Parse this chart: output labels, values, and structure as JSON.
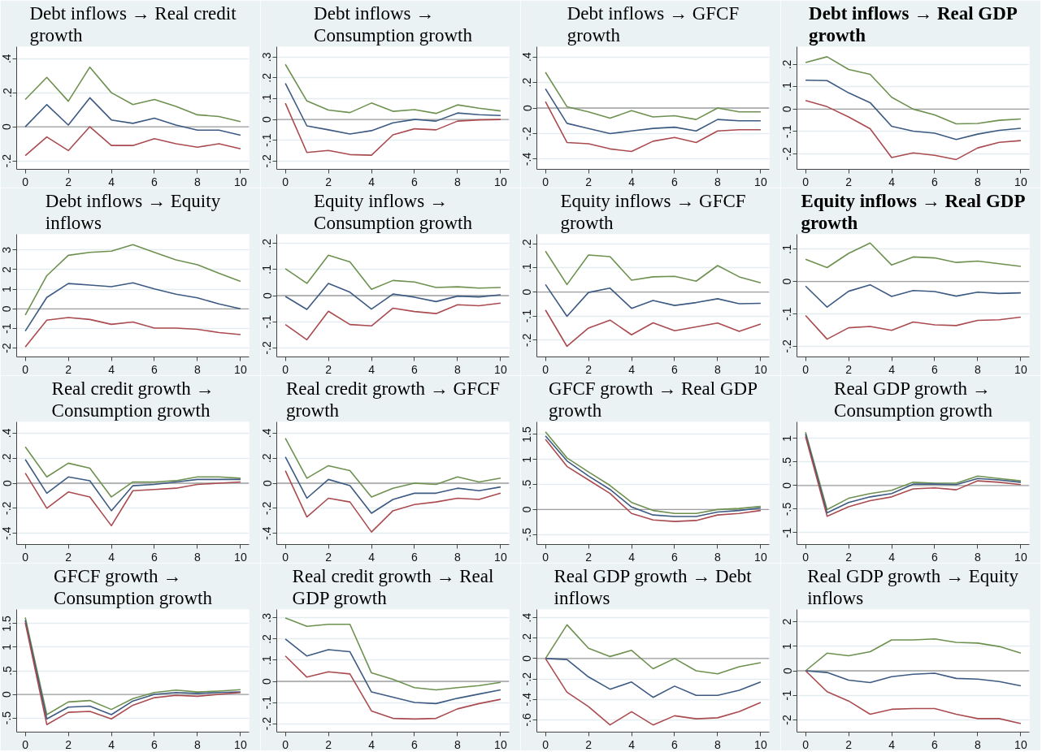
{
  "chart_data": [
    {
      "type": "line",
      "title": "Debt inflows → Real credit growth",
      "x": [
        0,
        1,
        2,
        3,
        4,
        5,
        6,
        7,
        8,
        9,
        10
      ],
      "xlim": [
        -0.4,
        10.4
      ],
      "xticks": [
        0,
        2,
        4,
        6,
        8,
        10
      ],
      "ylim": [
        -0.25,
        0.47
      ],
      "yticks": [
        {
          "value": -0.2,
          "label": "-.2"
        },
        0,
        {
          "value": 0.2,
          "label": ".2"
        },
        {
          "value": 0.4,
          "label": ".4"
        }
      ],
      "grid": "y",
      "ref_lines": [
        {
          "axis": "y",
          "value": 0,
          "color": "#a0a0a0"
        }
      ],
      "series": [
        {
          "color": "#6e9150",
          "values": [
            0.16,
            0.29,
            0.15,
            0.35,
            0.2,
            0.13,
            0.16,
            0.12,
            0.07,
            0.06,
            0.03
          ]
        },
        {
          "color": "#3c5a82",
          "values": [
            0,
            0.13,
            0.01,
            0.17,
            0.04,
            0.02,
            0.05,
            0.01,
            -0.02,
            -0.02,
            -0.05
          ]
        },
        {
          "color": "#aa4b50",
          "values": [
            -0.17,
            -0.06,
            -0.14,
            0,
            -0.11,
            -0.11,
            -0.07,
            -0.1,
            -0.12,
            -0.1,
            -0.13
          ]
        }
      ]
    },
    {
      "type": "line",
      "title": "Debt inflows → Consumption growth",
      "x": [
        0,
        1,
        2,
        3,
        4,
        5,
        6,
        7,
        8,
        9,
        10
      ],
      "xlim": [
        -0.4,
        10.4
      ],
      "xticks": [
        0,
        2,
        4,
        6,
        8,
        10
      ],
      "ylim": [
        -0.24,
        0.35
      ],
      "yticks": [
        {
          "value": -0.2,
          "label": "-.2"
        },
        {
          "value": -0.1,
          "label": "-.1"
        },
        0,
        {
          "value": 0.1,
          "label": ".1"
        },
        {
          "value": 0.2,
          "label": ".2"
        },
        {
          "value": 0.3,
          "label": ".3"
        }
      ],
      "grid": "y",
      "ref_lines": [
        {
          "axis": "y",
          "value": 0,
          "color": "#a0a0a0"
        }
      ],
      "series": [
        {
          "color": "#6e9150",
          "values": [
            0.265,
            0.089,
            0.045,
            0.033,
            0.079,
            0.039,
            0.047,
            0.029,
            0.07,
            0.054,
            0.041
          ]
        },
        {
          "color": "#3c5a82",
          "values": [
            0.174,
            -0.031,
            -0.05,
            -0.07,
            -0.054,
            -0.016,
            0,
            -0.008,
            0.031,
            0.023,
            0.019
          ]
        },
        {
          "color": "#aa4b50",
          "values": [
            0.078,
            -0.159,
            -0.149,
            -0.169,
            -0.172,
            -0.074,
            -0.045,
            -0.05,
            -0.008,
            -0.002,
            0
          ]
        }
      ]
    },
    {
      "type": "line",
      "title": "Debt inflows → GFCF growth",
      "x": [
        0,
        1,
        2,
        3,
        4,
        5,
        6,
        7,
        8,
        9,
        10
      ],
      "xlim": [
        -0.4,
        10.4
      ],
      "xticks": [
        0,
        2,
        4,
        6,
        8,
        10
      ],
      "ylim": [
        -0.48,
        0.48
      ],
      "yticks": [
        {
          "value": -0.4,
          "label": "-.4"
        },
        {
          "value": -0.2,
          "label": "-.2"
        },
        0,
        {
          "value": 0.2,
          "label": ".2"
        },
        {
          "value": 0.4,
          "label": ".4"
        }
      ],
      "grid": "y",
      "ref_lines": [
        {
          "axis": "y",
          "value": 0,
          "color": "#a0a0a0"
        }
      ],
      "series": [
        {
          "color": "#6e9150",
          "values": [
            0.28,
            0.01,
            -0.03,
            -0.08,
            -0.02,
            -0.07,
            -0.06,
            -0.09,
            0,
            -0.03,
            -0.03
          ]
        },
        {
          "color": "#3c5a82",
          "values": [
            0.15,
            -0.12,
            -0.16,
            -0.2,
            -0.18,
            -0.16,
            -0.15,
            -0.18,
            -0.09,
            -0.1,
            -0.1
          ]
        },
        {
          "color": "#aa4b50",
          "values": [
            0.05,
            -0.27,
            -0.28,
            -0.32,
            -0.34,
            -0.26,
            -0.23,
            -0.27,
            -0.18,
            -0.17,
            -0.17
          ]
        }
      ]
    },
    {
      "type": "line",
      "title": "Debt inflows → Real GDP growth",
      "x": [
        0,
        1,
        2,
        3,
        4,
        5,
        6,
        7,
        8,
        9,
        10
      ],
      "xlim": [
        -0.4,
        10.4
      ],
      "xticks": [
        0,
        2,
        4,
        6,
        8,
        10
      ],
      "ylim": [
        -0.27,
        0.28
      ],
      "yticks": [
        {
          "value": -0.2,
          "label": "-.2"
        },
        {
          "value": -0.1,
          "label": "-.1"
        },
        0,
        {
          "value": 0.1,
          "label": ".1"
        },
        {
          "value": 0.2,
          "label": ".2"
        }
      ],
      "grid": "y",
      "ref_lines": [
        {
          "axis": "y",
          "value": 0,
          "color": "#a0a0a0"
        }
      ],
      "series": [
        {
          "color": "#6e9150",
          "values": [
            0.209,
            0.235,
            0.178,
            0.156,
            0.053,
            0,
            -0.026,
            -0.066,
            -0.064,
            -0.05,
            -0.044
          ]
        },
        {
          "color": "#3c5a82",
          "values": [
            0.13,
            0.128,
            0.073,
            0.029,
            -0.077,
            -0.099,
            -0.108,
            -0.136,
            -0.112,
            -0.095,
            -0.086
          ]
        },
        {
          "color": "#aa4b50",
          "values": [
            0.039,
            0.011,
            -0.035,
            -0.088,
            -0.217,
            -0.196,
            -0.207,
            -0.226,
            -0.174,
            -0.149,
            -0.141
          ]
        }
      ]
    },
    {
      "type": "line",
      "title": "Debt inflows → Equity inflows",
      "x": [
        0,
        1,
        2,
        3,
        4,
        5,
        6,
        7,
        8,
        9,
        10
      ],
      "xlim": [
        -0.4,
        10.4
      ],
      "xticks": [
        0,
        2,
        4,
        6,
        8,
        10
      ],
      "ylim": [
        -2.45,
        3.8
      ],
      "yticks": [
        -2,
        -1,
        0,
        1,
        2,
        3
      ],
      "grid": "y",
      "ref_lines": [
        {
          "axis": "y",
          "value": 0,
          "color": "#a0a0a0"
        }
      ],
      "series": [
        {
          "color": "#6e9150",
          "values": [
            -0.31,
            1.69,
            2.73,
            2.88,
            2.94,
            3.27,
            2.88,
            2.5,
            2.25,
            1.81,
            1.4
          ]
        },
        {
          "color": "#3c5a82",
          "values": [
            -1.13,
            0.58,
            1.29,
            1.21,
            1.13,
            1.33,
            1.02,
            0.75,
            0.56,
            0.25,
            0
          ]
        },
        {
          "color": "#aa4b50",
          "values": [
            -1.94,
            -0.58,
            -0.44,
            -0.54,
            -0.79,
            -0.67,
            -0.98,
            -0.98,
            -1.04,
            -1.21,
            -1.31
          ]
        }
      ]
    },
    {
      "type": "line",
      "title": "Equity inflows → Consumption growth",
      "x": [
        0,
        1,
        2,
        3,
        4,
        5,
        6,
        7,
        8,
        9,
        10
      ],
      "xlim": [
        -0.4,
        10.4
      ],
      "xticks": [
        0,
        2,
        4,
        6,
        8,
        10
      ],
      "ylim": [
        -0.235,
        0.235
      ],
      "yticks": [
        {
          "value": -0.2,
          "label": "-.2"
        },
        {
          "value": -0.1,
          "label": "-.1"
        },
        0,
        {
          "value": 0.1,
          "label": ".1"
        },
        {
          "value": 0.2,
          "label": ".2"
        }
      ],
      "grid": "y",
      "ref_lines": [
        {
          "axis": "y",
          "value": 0,
          "color": "#a0a0a0"
        }
      ],
      "series": [
        {
          "color": "#6e9150",
          "values": [
            0.103,
            0.047,
            0.155,
            0.129,
            0.024,
            0.058,
            0.052,
            0.031,
            0.034,
            0.029,
            0.031
          ]
        },
        {
          "color": "#3c5a82",
          "values": [
            -0.003,
            -0.053,
            0.047,
            0.013,
            -0.052,
            0.006,
            -0.006,
            -0.023,
            -0.002,
            -0.005,
            0.003
          ]
        },
        {
          "color": "#aa4b50",
          "values": [
            -0.111,
            -0.169,
            -0.06,
            -0.111,
            -0.116,
            -0.048,
            -0.061,
            -0.069,
            -0.035,
            -0.039,
            -0.029
          ]
        }
      ]
    },
    {
      "type": "line",
      "title": "Equity inflows → GFCF growth",
      "x": [
        0,
        1,
        2,
        3,
        4,
        5,
        6,
        7,
        8,
        9,
        10
      ],
      "xlim": [
        -0.4,
        10.4
      ],
      "xticks": [
        0,
        2,
        4,
        6,
        8,
        10
      ],
      "ylim": [
        -0.27,
        0.24
      ],
      "yticks": [
        {
          "value": -0.2,
          "label": "-.2"
        },
        {
          "value": -0.1,
          "label": "-.1"
        },
        0,
        {
          "value": 0.1,
          "label": ".1"
        },
        {
          "value": 0.2,
          "label": ".2"
        }
      ],
      "grid": "y",
      "ref_lines": [
        {
          "axis": "y",
          "value": 0,
          "color": "#a0a0a0"
        }
      ],
      "series": [
        {
          "color": "#6e9150",
          "values": [
            0.17,
            0.031,
            0.154,
            0.147,
            0.049,
            0.063,
            0.065,
            0.045,
            0.11,
            0.063,
            0.038
          ]
        },
        {
          "color": "#3c5a82",
          "values": [
            0.031,
            -0.101,
            -0.002,
            0.016,
            -0.068,
            -0.035,
            -0.056,
            -0.044,
            -0.028,
            -0.049,
            -0.047
          ]
        },
        {
          "color": "#aa4b50",
          "values": [
            -0.075,
            -0.226,
            -0.15,
            -0.117,
            -0.178,
            -0.128,
            -0.161,
            -0.145,
            -0.129,
            -0.164,
            -0.133
          ]
        }
      ]
    },
    {
      "type": "line",
      "title": "Equity inflows → Real GDP growth",
      "x": [
        0,
        1,
        2,
        3,
        4,
        5,
        6,
        7,
        8,
        9,
        10
      ],
      "xlim": [
        -0.4,
        10.4
      ],
      "xticks": [
        0,
        2,
        4,
        6,
        8,
        10
      ],
      "ylim": [
        -0.233,
        0.146
      ],
      "yticks": [
        {
          "value": -0.2,
          "label": "-.2"
        },
        {
          "value": -0.1,
          "label": "-.1"
        },
        0,
        {
          "value": 0.1,
          "label": ".1"
        }
      ],
      "grid": "y",
      "ref_lines": [
        {
          "axis": "y",
          "value": 0,
          "color": "#a0a0a0"
        }
      ],
      "series": [
        {
          "color": "#6e9150",
          "values": [
            0.069,
            0.043,
            0.087,
            0.119,
            0.051,
            0.076,
            0.073,
            0.059,
            0.063,
            0.055,
            0.047
          ]
        },
        {
          "color": "#3c5a82",
          "values": [
            -0.014,
            -0.079,
            -0.03,
            -0.01,
            -0.046,
            -0.028,
            -0.031,
            -0.045,
            -0.033,
            -0.037,
            -0.035
          ]
        },
        {
          "color": "#aa4b50",
          "values": [
            -0.105,
            -0.178,
            -0.143,
            -0.139,
            -0.151,
            -0.125,
            -0.134,
            -0.136,
            -0.12,
            -0.118,
            -0.11
          ]
        }
      ]
    },
    {
      "type": "line",
      "title": "Real credit growth → Consumption growth",
      "x": [
        0,
        1,
        2,
        3,
        4,
        5,
        6,
        7,
        8,
        9,
        10
      ],
      "xlim": [
        -0.4,
        10.4
      ],
      "xticks": [
        0,
        2,
        4,
        6,
        8,
        10
      ],
      "ylim": [
        -0.49,
        0.49
      ],
      "yticks": [
        {
          "value": -0.4,
          "label": "-.4"
        },
        {
          "value": -0.2,
          "label": "-.2"
        },
        0,
        {
          "value": 0.2,
          "label": ".2"
        },
        {
          "value": 0.4,
          "label": ".4"
        }
      ],
      "grid": "y",
      "ref_lines": [
        {
          "axis": "y",
          "value": 0,
          "color": "#a0a0a0"
        }
      ],
      "series": [
        {
          "color": "#6e9150",
          "values": [
            0.29,
            0.05,
            0.16,
            0.12,
            -0.11,
            0.01,
            0.01,
            0.02,
            0.05,
            0.05,
            0.04
          ]
        },
        {
          "color": "#3c5a82",
          "values": [
            0.19,
            -0.08,
            0.05,
            0.02,
            -0.22,
            -0.02,
            -0.01,
            0.01,
            0.03,
            0.03,
            0.03
          ]
        },
        {
          "color": "#aa4b50",
          "values": [
            0.08,
            -0.2,
            -0.07,
            -0.11,
            -0.34,
            -0.06,
            -0.05,
            -0.04,
            -0.01,
            0,
            0.01
          ]
        }
      ]
    },
    {
      "type": "line",
      "title": "Real credit growth → GFCF growth",
      "x": [
        0,
        1,
        2,
        3,
        4,
        5,
        6,
        7,
        8,
        9,
        10
      ],
      "xlim": [
        -0.4,
        10.4
      ],
      "xticks": [
        0,
        2,
        4,
        6,
        8,
        10
      ],
      "ylim": [
        -0.49,
        0.49
      ],
      "yticks": [
        {
          "value": -0.4,
          "label": "-.4"
        },
        {
          "value": -0.2,
          "label": "-.2"
        },
        0,
        {
          "value": 0.2,
          "label": ".2"
        },
        {
          "value": 0.4,
          "label": ".4"
        }
      ],
      "grid": "y",
      "ref_lines": [
        {
          "axis": "y",
          "value": 0,
          "color": "#a0a0a0"
        }
      ],
      "series": [
        {
          "color": "#6e9150",
          "values": [
            0.36,
            0.04,
            0.14,
            0.1,
            -0.11,
            -0.04,
            0,
            -0.01,
            0.05,
            0.01,
            0.04
          ]
        },
        {
          "color": "#3c5a82",
          "values": [
            0.21,
            -0.12,
            0.03,
            -0.02,
            -0.24,
            -0.13,
            -0.08,
            -0.08,
            -0.04,
            -0.06,
            -0.03
          ]
        },
        {
          "color": "#aa4b50",
          "values": [
            0.1,
            -0.27,
            -0.12,
            -0.15,
            -0.39,
            -0.22,
            -0.17,
            -0.15,
            -0.12,
            -0.13,
            -0.08
          ]
        }
      ]
    },
    {
      "type": "line",
      "title": "GFCF growth → Real GDP growth",
      "x": [
        0,
        1,
        2,
        3,
        4,
        5,
        6,
        7,
        8,
        9,
        10
      ],
      "xlim": [
        -0.4,
        10.4
      ],
      "xticks": [
        0,
        2,
        4,
        6,
        8,
        10
      ],
      "ylim": [
        -0.7,
        1.75
      ],
      "yticks": [
        {
          "value": -0.5,
          "label": "-.5"
        },
        0,
        {
          "value": 0.5,
          "label": ".5"
        },
        1,
        1.5
      ],
      "grid": "y",
      "ref_lines": [
        {
          "axis": "y",
          "value": 0,
          "color": "#a0a0a0"
        }
      ],
      "series": [
        {
          "color": "#6e9150",
          "values": [
            1.55,
            1.03,
            0.75,
            0.48,
            0.14,
            -0.02,
            -0.08,
            -0.08,
            0,
            0.02,
            0.06
          ]
        },
        {
          "color": "#3c5a82",
          "values": [
            1.47,
            0.97,
            0.67,
            0.4,
            0.05,
            -0.11,
            -0.14,
            -0.14,
            -0.05,
            -0.02,
            0.03
          ]
        },
        {
          "color": "#aa4b50",
          "values": [
            1.4,
            0.86,
            0.59,
            0.32,
            -0.08,
            -0.21,
            -0.24,
            -0.22,
            -0.11,
            -0.08,
            -0.02
          ]
        }
      ]
    },
    {
      "type": "line",
      "title": "Real GDP growth → Consumption growth",
      "x": [
        0,
        1,
        2,
        3,
        4,
        5,
        6,
        7,
        8,
        9,
        10
      ],
      "xlim": [
        -0.4,
        10.4
      ],
      "xticks": [
        0,
        2,
        4,
        6,
        8,
        10
      ],
      "ylim": [
        -1.25,
        1.35
      ],
      "yticks": [
        -1,
        {
          "value": -0.5,
          "label": "-.5"
        },
        0,
        {
          "value": 0.5,
          "label": ".5"
        },
        1
      ],
      "grid": "y",
      "ref_lines": [
        {
          "axis": "y",
          "value": 0,
          "color": "#a0a0a0"
        }
      ],
      "series": [
        {
          "color": "#6e9150",
          "values": [
            1.13,
            -0.51,
            -0.27,
            -0.17,
            -0.1,
            0.07,
            0.05,
            0.05,
            0.2,
            0.15,
            0.1
          ]
        },
        {
          "color": "#3c5a82",
          "values": [
            1.09,
            -0.58,
            -0.36,
            -0.24,
            -0.17,
            0.03,
            0.03,
            0.02,
            0.15,
            0.12,
            0.07
          ]
        },
        {
          "color": "#aa4b50",
          "values": [
            1.04,
            -0.65,
            -0.45,
            -0.32,
            -0.24,
            -0.07,
            -0.05,
            -0.09,
            0.1,
            0.07,
            0.02
          ]
        }
      ]
    },
    {
      "type": "line",
      "title": "GFCF growth → Consumption growth",
      "x": [
        0,
        1,
        2,
        3,
        4,
        5,
        6,
        7,
        8,
        9,
        10
      ],
      "xlim": [
        -0.4,
        10.4
      ],
      "xticks": [
        0,
        2,
        4,
        6,
        8,
        10
      ],
      "ylim": [
        -0.8,
        1.8
      ],
      "yticks": [
        {
          "value": -0.5,
          "label": "-.5"
        },
        0,
        {
          "value": 0.5,
          "label": ".5"
        },
        1,
        1.5
      ],
      "grid": "y",
      "ref_lines": [
        {
          "axis": "y",
          "value": 0,
          "color": "#a0a0a0"
        }
      ],
      "series": [
        {
          "color": "#6e9150",
          "values": [
            1.63,
            -0.43,
            -0.16,
            -0.13,
            -0.32,
            -0.09,
            0.04,
            0.09,
            0.05,
            0.07,
            0.1
          ]
        },
        {
          "color": "#3c5a82",
          "values": [
            1.57,
            -0.52,
            -0.27,
            -0.25,
            -0.43,
            -0.14,
            0,
            0.04,
            0.02,
            0.04,
            0.05
          ]
        },
        {
          "color": "#aa4b50",
          "values": [
            1.52,
            -0.64,
            -0.38,
            -0.36,
            -0.52,
            -0.23,
            -0.07,
            -0.02,
            -0.04,
            0,
            0.04
          ]
        }
      ]
    },
    {
      "type": "line",
      "title": "Real credit growth → Real GDP growth",
      "x": [
        0,
        1,
        2,
        3,
        4,
        5,
        6,
        7,
        8,
        9,
        10
      ],
      "xlim": [
        -0.4,
        10.4
      ],
      "xticks": [
        0,
        2,
        4,
        6,
        8,
        10
      ],
      "ylim": [
        -0.24,
        0.34
      ],
      "yticks": [
        {
          "value": -0.2,
          "label": "-.2"
        },
        {
          "value": -0.1,
          "label": "-.1"
        },
        0,
        {
          "value": 0.1,
          "label": ".1"
        },
        {
          "value": 0.2,
          "label": ".2"
        },
        {
          "value": 0.3,
          "label": ".3"
        }
      ],
      "grid": "y",
      "ref_lines": [
        {
          "axis": "y",
          "value": 0,
          "color": "#a0a0a0"
        }
      ],
      "series": [
        {
          "color": "#6e9150",
          "values": [
            0.3,
            0.26,
            0.27,
            0.27,
            0.04,
            0.01,
            -0.03,
            -0.04,
            -0.03,
            -0.02,
            -0.005
          ]
        },
        {
          "color": "#3c5a82",
          "values": [
            0.2,
            0.12,
            0.15,
            0.14,
            -0.05,
            -0.075,
            -0.1,
            -0.105,
            -0.08,
            -0.06,
            -0.04
          ]
        },
        {
          "color": "#aa4b50",
          "values": [
            0.12,
            0.02,
            0.045,
            0.035,
            -0.14,
            -0.175,
            -0.178,
            -0.175,
            -0.13,
            -0.105,
            -0.085
          ]
        }
      ]
    },
    {
      "type": "line",
      "title": "Real GDP growth → Debt inflows",
      "x": [
        0,
        1,
        2,
        3,
        4,
        5,
        6,
        7,
        8,
        9,
        10
      ],
      "xlim": [
        -0.4,
        10.4
      ],
      "xticks": [
        0,
        2,
        4,
        6,
        8,
        10
      ],
      "ylim": [
        -0.72,
        0.48
      ],
      "yticks": [
        {
          "value": -0.6,
          "label": "-.6"
        },
        {
          "value": -0.4,
          "label": "-.4"
        },
        {
          "value": -0.2,
          "label": "-.2"
        },
        0,
        {
          "value": 0.2,
          "label": ".2"
        },
        {
          "value": 0.4,
          "label": ".4"
        }
      ],
      "grid": "y",
      "ref_lines": [
        {
          "axis": "y",
          "value": 0,
          "color": "#a0a0a0"
        }
      ],
      "series": [
        {
          "color": "#6e9150",
          "values": [
            0,
            0.33,
            0.1,
            0.02,
            0.08,
            -0.1,
            0,
            -0.12,
            -0.15,
            -0.08,
            -0.04
          ]
        },
        {
          "color": "#3c5a82",
          "values": [
            0,
            -0.01,
            -0.18,
            -0.3,
            -0.23,
            -0.38,
            -0.27,
            -0.36,
            -0.36,
            -0.31,
            -0.23
          ]
        },
        {
          "color": "#aa4b50",
          "values": [
            0,
            -0.33,
            -0.47,
            -0.65,
            -0.52,
            -0.65,
            -0.56,
            -0.59,
            -0.58,
            -0.52,
            -0.43
          ]
        }
      ]
    },
    {
      "type": "line",
      "title": "Real GDP growth → Equity inflows",
      "x": [
        0,
        1,
        2,
        3,
        4,
        5,
        6,
        7,
        8,
        9,
        10
      ],
      "xlim": [
        -0.4,
        10.4
      ],
      "xticks": [
        0,
        2,
        4,
        6,
        8,
        10
      ],
      "ylim": [
        -2.5,
        2.5
      ],
      "yticks": [
        -2,
        -1,
        0,
        1,
        2
      ],
      "grid": "y",
      "ref_lines": [
        {
          "axis": "y",
          "value": 0,
          "color": "#a0a0a0"
        }
      ],
      "series": [
        {
          "color": "#6e9150",
          "values": [
            0,
            0.72,
            0.61,
            0.78,
            1.26,
            1.26,
            1.3,
            1.16,
            1.13,
            0.99,
            0.72
          ]
        },
        {
          "color": "#3c5a82",
          "values": [
            0,
            -0.07,
            -0.38,
            -0.48,
            -0.24,
            -0.14,
            -0.1,
            -0.31,
            -0.34,
            -0.44,
            -0.61
          ]
        },
        {
          "color": "#aa4b50",
          "values": [
            0,
            -0.85,
            -1.23,
            -1.77,
            -1.57,
            -1.54,
            -1.54,
            -1.77,
            -1.95,
            -1.95,
            -2.15
          ]
        }
      ]
    }
  ]
}
